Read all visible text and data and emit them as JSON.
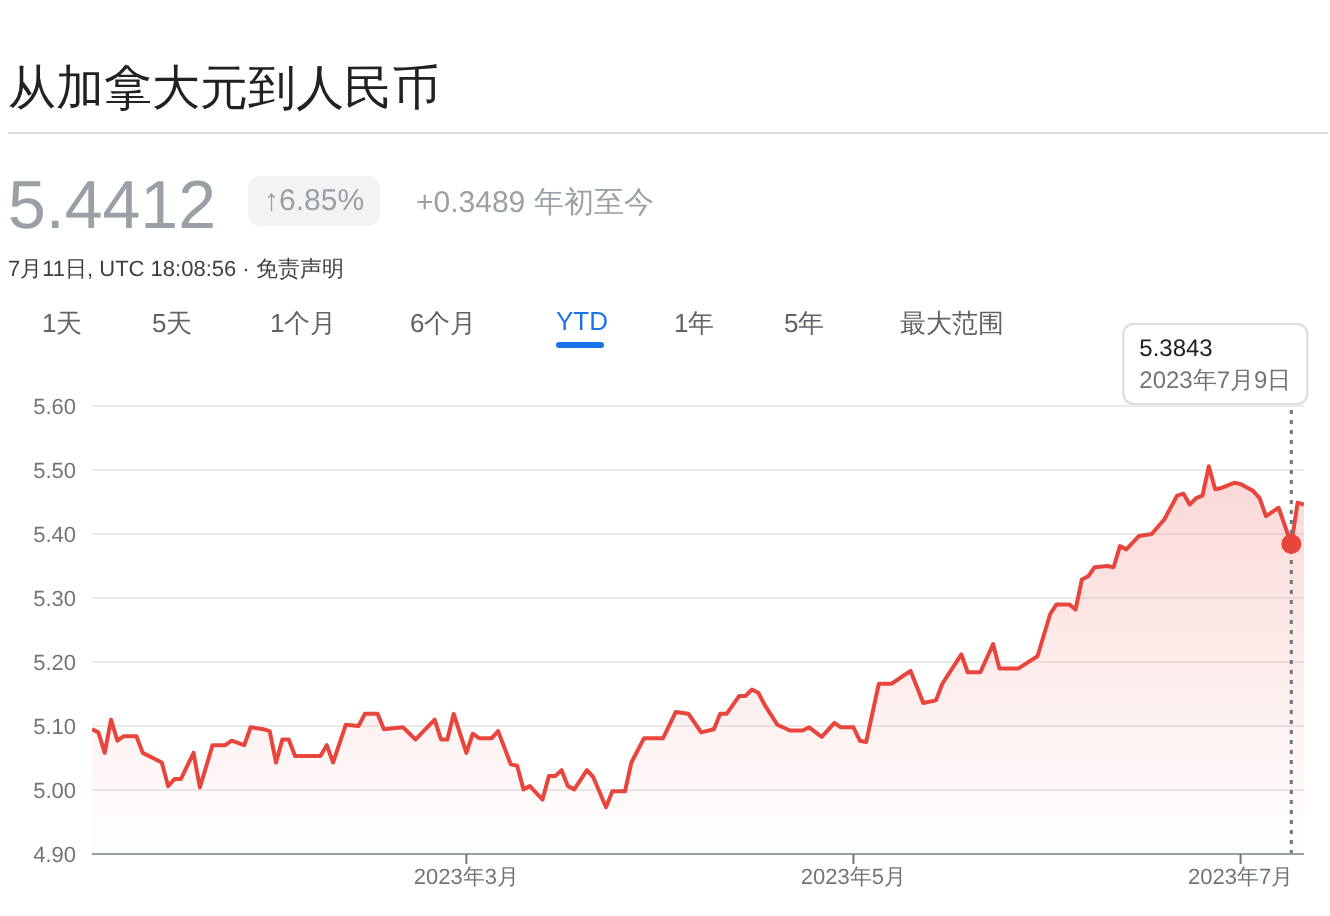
{
  "chart_data": {
    "type": "area",
    "title": "从加拿大元到人民币",
    "x": [
      "2023-01-01",
      "2023-01-02",
      "2023-01-03",
      "2023-01-04",
      "2023-01-05",
      "2023-01-06",
      "2023-01-08",
      "2023-01-09",
      "2023-01-11",
      "2023-01-12",
      "2023-01-13",
      "2023-01-14",
      "2023-01-15",
      "2023-01-17",
      "2023-01-18",
      "2023-01-20",
      "2023-01-22",
      "2023-01-23",
      "2023-01-25",
      "2023-01-26",
      "2023-01-28",
      "2023-01-29",
      "2023-01-30",
      "2023-01-31",
      "2023-02-01",
      "2023-02-02",
      "2023-02-06",
      "2023-02-07",
      "2023-02-08",
      "2023-02-10",
      "2023-02-12",
      "2023-02-13",
      "2023-02-15",
      "2023-02-16",
      "2023-02-19",
      "2023-02-21",
      "2023-02-24",
      "2023-02-25",
      "2023-02-26",
      "2023-02-27",
      "2023-03-01",
      "2023-03-02",
      "2023-03-03",
      "2023-03-05",
      "2023-03-06",
      "2023-03-08",
      "2023-03-09",
      "2023-03-10",
      "2023-03-11",
      "2023-03-13",
      "2023-03-14",
      "2023-03-15",
      "2023-03-16",
      "2023-03-17",
      "2023-03-18",
      "2023-03-20",
      "2023-03-21",
      "2023-03-23",
      "2023-03-24",
      "2023-03-26",
      "2023-03-27",
      "2023-03-29",
      "2023-04-01",
      "2023-04-03",
      "2023-04-05",
      "2023-04-07",
      "2023-04-09",
      "2023-04-10",
      "2023-04-11",
      "2023-04-13",
      "2023-04-14",
      "2023-04-15",
      "2023-04-16",
      "2023-04-17",
      "2023-04-19",
      "2023-04-21",
      "2023-04-23",
      "2023-04-24",
      "2023-04-26",
      "2023-04-28",
      "2023-04-29",
      "2023-05-01",
      "2023-05-02",
      "2023-05-03",
      "2023-05-05",
      "2023-05-07",
      "2023-05-10",
      "2023-05-12",
      "2023-05-14",
      "2023-05-15",
      "2023-05-18",
      "2023-05-19",
      "2023-05-21",
      "2023-05-23",
      "2023-05-24",
      "2023-05-27",
      "2023-05-30",
      "2023-06-01",
      "2023-06-02",
      "2023-06-04",
      "2023-06-05",
      "2023-06-06",
      "2023-06-07",
      "2023-06-08",
      "2023-06-10",
      "2023-06-11",
      "2023-06-12",
      "2023-06-13",
      "2023-06-15",
      "2023-06-17",
      "2023-06-19",
      "2023-06-21",
      "2023-06-22",
      "2023-06-23",
      "2023-06-24",
      "2023-06-25",
      "2023-06-26",
      "2023-06-27",
      "2023-06-28",
      "2023-06-30",
      "2023-07-01",
      "2023-07-03",
      "2023-07-04",
      "2023-07-05",
      "2023-07-07",
      "2023-07-09",
      "2023-07-10",
      "2023-07-11"
    ],
    "series": [
      {
        "color": "#e8453c",
        "values": [
          5.095,
          5.09,
          5.058,
          5.11,
          5.077,
          5.084,
          5.084,
          5.058,
          5.048,
          5.043,
          5.006,
          5.017,
          5.017,
          5.058,
          5.004,
          5.07,
          5.07,
          5.077,
          5.07,
          5.098,
          5.095,
          5.092,
          5.043,
          5.079,
          5.079,
          5.053,
          5.053,
          5.07,
          5.043,
          5.102,
          5.1,
          5.119,
          5.119,
          5.095,
          5.098,
          5.079,
          5.11,
          5.079,
          5.079,
          5.119,
          5.058,
          5.088,
          5.081,
          5.081,
          5.092,
          5.04,
          5.038,
          5.001,
          5.006,
          4.985,
          5.022,
          5.022,
          5.031,
          5.006,
          5.001,
          5.031,
          5.02,
          4.973,
          4.998,
          4.998,
          5.043,
          5.081,
          5.081,
          5.122,
          5.119,
          5.09,
          5.095,
          5.119,
          5.119,
          5.147,
          5.147,
          5.157,
          5.152,
          5.133,
          5.102,
          5.093,
          5.093,
          5.098,
          5.083,
          5.105,
          5.098,
          5.098,
          5.077,
          5.075,
          5.166,
          5.166,
          5.186,
          5.136,
          5.14,
          5.166,
          5.212,
          5.184,
          5.184,
          5.228,
          5.19,
          5.19,
          5.209,
          5.275,
          5.29,
          5.29,
          5.282,
          5.329,
          5.334,
          5.348,
          5.35,
          5.348,
          5.381,
          5.376,
          5.397,
          5.4,
          5.423,
          5.46,
          5.463,
          5.446,
          5.456,
          5.46,
          5.506,
          5.47,
          5.472,
          5.48,
          5.478,
          5.467,
          5.456,
          5.428,
          5.441,
          5.3843,
          5.449,
          5.446
        ]
      }
    ],
    "xlim": [
      "2023-01-01",
      "2023-07-11"
    ],
    "xticks": [
      {
        "value": "2023-03-01",
        "label": "2023年3月"
      },
      {
        "value": "2023-05-01",
        "label": "2023年5月"
      },
      {
        "value": "2023-07-01",
        "label": "2023年7月"
      }
    ],
    "ylim": [
      4.9,
      5.6
    ],
    "yticks": [
      {
        "value": 4.9,
        "label": "4.90"
      },
      {
        "value": 5.0,
        "label": "5.00"
      },
      {
        "value": 5.1,
        "label": "5.10"
      },
      {
        "value": 5.2,
        "label": "5.20"
      },
      {
        "value": 5.3,
        "label": "5.30"
      },
      {
        "value": 5.4,
        "label": "5.40"
      },
      {
        "value": 5.5,
        "label": "5.50"
      },
      {
        "value": 5.6,
        "label": "5.60"
      }
    ],
    "grid": "y",
    "legend": false,
    "marker": "none",
    "line_style": "solid",
    "ref_lines": [
      {
        "axis": "x",
        "value": "2023-07-09",
        "label": "2023年7月9日",
        "color": "#70757a",
        "line_style": "dotted"
      }
    ],
    "annotations": [
      "5.4412",
      "↑6.85%",
      "+0.3489 年初至今",
      "7月11日, UTC 18:08:56 · 免责声明",
      "1天",
      "5天",
      "1个月",
      "6个月",
      "YTD",
      "1年",
      "5年",
      "最大范围",
      "5.3843"
    ]
  }
}
